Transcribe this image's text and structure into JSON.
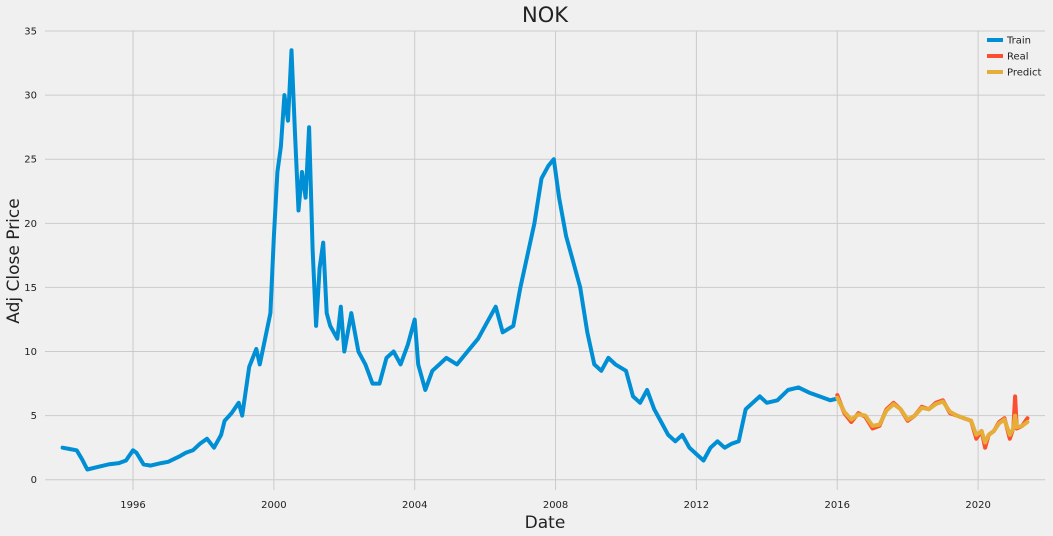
{
  "chart_data": {
    "type": "line",
    "title": "NOK",
    "xlabel": "Date",
    "ylabel": "Adj Close Price",
    "xlim": [
      1993.5,
      2021.9
    ],
    "ylim": [
      -0.8,
      35
    ],
    "x_ticks": [
      1996,
      2000,
      2004,
      2008,
      2012,
      2016,
      2020
    ],
    "x_tick_labels": [
      "1996",
      "2000",
      "2004",
      "2008",
      "2012",
      "2016",
      "2020"
    ],
    "y_ticks": [
      0,
      5,
      10,
      15,
      20,
      25,
      30,
      35
    ],
    "y_tick_labels": [
      "0",
      "5",
      "10",
      "15",
      "20",
      "25",
      "30",
      "35"
    ],
    "grid": true,
    "legend_position": "top-right",
    "series": [
      {
        "name": "Train",
        "color": "#008fd5",
        "x": [
          1994.0,
          1994.2,
          1994.4,
          1994.55,
          1994.7,
          1995.0,
          1995.3,
          1995.6,
          1995.8,
          1996.0,
          1996.1,
          1996.3,
          1996.5,
          1996.8,
          1997.0,
          1997.3,
          1997.5,
          1997.7,
          1997.9,
          1998.1,
          1998.3,
          1998.5,
          1998.6,
          1998.8,
          1999.0,
          1999.1,
          1999.3,
          1999.5,
          1999.6,
          1999.75,
          1999.9,
          2000.0,
          2000.1,
          2000.2,
          2000.3,
          2000.4,
          2000.5,
          2000.6,
          2000.7,
          2000.8,
          2000.9,
          2001.0,
          2001.1,
          2001.2,
          2001.3,
          2001.4,
          2001.5,
          2001.6,
          2001.8,
          2001.9,
          2002.0,
          2002.2,
          2002.4,
          2002.6,
          2002.8,
          2003.0,
          2003.2,
          2003.4,
          2003.6,
          2003.8,
          2004.0,
          2004.1,
          2004.3,
          2004.5,
          2004.7,
          2004.9,
          2005.2,
          2005.5,
          2005.8,
          2006.0,
          2006.3,
          2006.5,
          2006.8,
          2007.0,
          2007.2,
          2007.4,
          2007.6,
          2007.8,
          2007.95,
          2008.1,
          2008.3,
          2008.5,
          2008.7,
          2008.9,
          2009.1,
          2009.3,
          2009.5,
          2009.7,
          2010.0,
          2010.2,
          2010.4,
          2010.6,
          2010.8,
          2011.0,
          2011.2,
          2011.4,
          2011.6,
          2011.8,
          2012.0,
          2012.2,
          2012.4,
          2012.6,
          2012.8,
          2013.0,
          2013.2,
          2013.4,
          2013.6,
          2013.8,
          2014.0,
          2014.3,
          2014.6,
          2014.9,
          2015.2,
          2015.5,
          2015.8,
          2015.95
        ],
        "y": [
          2.5,
          2.4,
          2.3,
          1.6,
          0.8,
          1.0,
          1.2,
          1.3,
          1.5,
          2.3,
          2.1,
          1.2,
          1.1,
          1.3,
          1.4,
          1.8,
          2.1,
          2.3,
          2.8,
          3.2,
          2.5,
          3.5,
          4.6,
          5.2,
          6.0,
          5.0,
          8.8,
          10.2,
          9.0,
          11.0,
          13.0,
          19.0,
          24.0,
          26.0,
          30.0,
          28.0,
          33.5,
          27.0,
          21.0,
          24.0,
          22.0,
          27.5,
          18.0,
          12.0,
          16.5,
          18.5,
          13.0,
          12.0,
          11.0,
          13.5,
          10.0,
          13.0,
          10.0,
          9.0,
          7.5,
          7.5,
          9.5,
          10.0,
          9.0,
          10.5,
          12.5,
          9.0,
          7.0,
          8.5,
          9.0,
          9.5,
          9.0,
          10.0,
          11.0,
          12.0,
          13.5,
          11.5,
          12.0,
          15.0,
          17.5,
          20.0,
          23.5,
          24.5,
          25.0,
          22.0,
          19.0,
          17.0,
          15.0,
          11.5,
          9.0,
          8.5,
          9.5,
          9.0,
          8.5,
          6.5,
          6.0,
          7.0,
          5.5,
          4.5,
          3.5,
          3.0,
          3.5,
          2.5,
          2.0,
          1.5,
          2.5,
          3.0,
          2.5,
          2.8,
          3.0,
          5.5,
          6.0,
          6.5,
          6.0,
          6.2,
          7.0,
          7.2,
          6.8,
          6.5,
          6.2,
          6.3
        ]
      },
      {
        "name": "Real",
        "color": "#fc4f30",
        "x": [
          2016.0,
          2016.2,
          2016.4,
          2016.6,
          2016.8,
          2017.0,
          2017.2,
          2017.4,
          2017.6,
          2017.8,
          2018.0,
          2018.2,
          2018.4,
          2018.6,
          2018.8,
          2019.0,
          2019.2,
          2019.4,
          2019.6,
          2019.8,
          2019.95,
          2020.1,
          2020.2,
          2020.3,
          2020.45,
          2020.6,
          2020.75,
          2020.9,
          2021.0,
          2021.05,
          2021.1,
          2021.25,
          2021.4
        ],
        "y": [
          6.6,
          5.2,
          4.5,
          5.2,
          4.9,
          4.0,
          4.2,
          5.5,
          6.0,
          5.5,
          4.6,
          5.0,
          5.7,
          5.5,
          6.0,
          6.2,
          5.2,
          5.0,
          4.8,
          4.6,
          3.2,
          3.8,
          2.5,
          3.5,
          3.8,
          4.5,
          4.8,
          3.2,
          4.0,
          6.5,
          4.0,
          4.2,
          4.8
        ]
      },
      {
        "name": "Predict",
        "color": "#e5ae38",
        "x": [
          2016.0,
          2016.2,
          2016.4,
          2016.6,
          2016.8,
          2017.0,
          2017.2,
          2017.4,
          2017.6,
          2017.8,
          2018.0,
          2018.2,
          2018.4,
          2018.6,
          2018.8,
          2019.0,
          2019.2,
          2019.4,
          2019.6,
          2019.8,
          2019.95,
          2020.1,
          2020.2,
          2020.3,
          2020.45,
          2020.6,
          2020.75,
          2020.9,
          2021.0,
          2021.05,
          2021.1,
          2021.25,
          2021.4
        ],
        "y": [
          6.4,
          5.3,
          4.7,
          5.1,
          5.0,
          4.2,
          4.3,
          5.4,
          5.9,
          5.5,
          4.7,
          5.0,
          5.6,
          5.5,
          5.9,
          6.1,
          5.3,
          5.0,
          4.8,
          4.6,
          3.5,
          3.8,
          2.9,
          3.5,
          3.8,
          4.4,
          4.7,
          3.5,
          4.0,
          5.0,
          4.1,
          4.2,
          4.5
        ]
      }
    ]
  }
}
